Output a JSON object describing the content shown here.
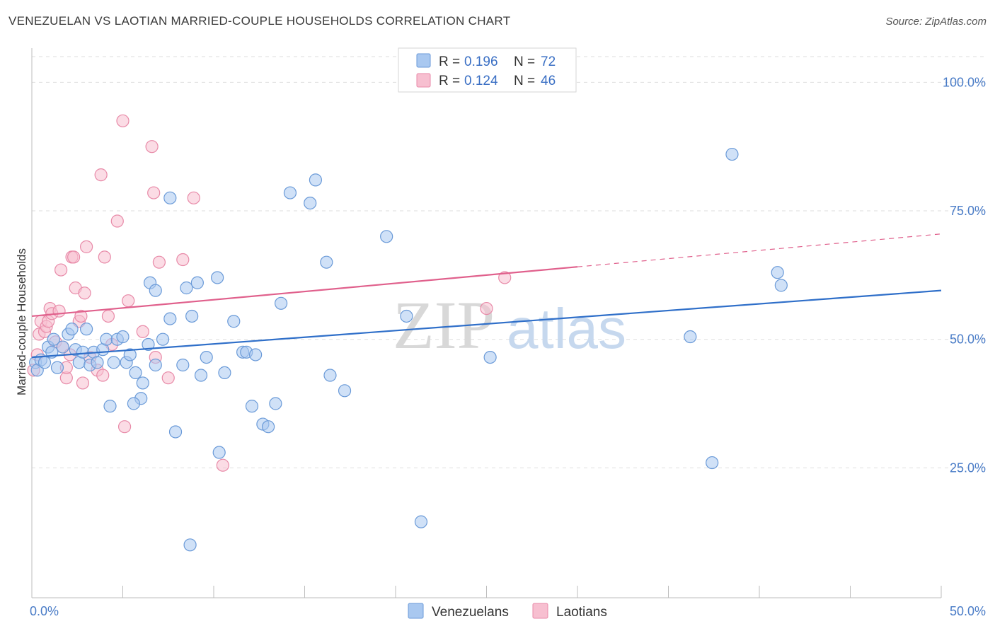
{
  "title": "VENEZUELAN VS LAOTIAN MARRIED-COUPLE HOUSEHOLDS CORRELATION CHART",
  "source": "Source: ZipAtlas.com",
  "watermark": {
    "zip": "ZIP",
    "atlas": "atlas"
  },
  "colors": {
    "venezuelans_fill": "#a9c8f0",
    "venezuelans_stroke": "#6a9ad8",
    "venezuelans_line": "#2f6fc9",
    "laotians_fill": "#f7bfd0",
    "laotians_stroke": "#e88aa8",
    "laotians_line": "#e0608c",
    "tick_text": "#4a7cc7"
  },
  "legend": {
    "r_label": "R =",
    "n_label": "N =",
    "venezuelans": {
      "r": "0.196",
      "n": "72"
    },
    "laotians": {
      "r": "0.124",
      "n": "46"
    }
  },
  "chart_data": {
    "type": "scatter",
    "title": "VENEZUELAN VS LAOTIAN MARRIED-COUPLE HOUSEHOLDS CORRELATION CHART",
    "xlabel": "",
    "ylabel": "Married-couple Households",
    "xlim": [
      0,
      50
    ],
    "ylim": [
      0,
      105
    ],
    "x_tick_labels": [
      "0.0%",
      "50.0%"
    ],
    "y_ticks": [
      25,
      50,
      75,
      100
    ],
    "y_tick_labels": [
      "25.0%",
      "50.0%",
      "75.0%",
      "100.0%"
    ],
    "grid": true,
    "legend_position": "top-center",
    "series": [
      {
        "name": "Venezuelans",
        "r": 0.196,
        "n": 72,
        "trend": {
          "x": [
            0,
            50
          ],
          "y": [
            46.5,
            59.5
          ],
          "dashed_from": null
        },
        "points": [
          [
            0.2,
            45.5
          ],
          [
            0.3,
            44
          ],
          [
            0.5,
            46
          ],
          [
            0.7,
            45.5
          ],
          [
            0.9,
            48.5
          ],
          [
            1.1,
            47.5
          ],
          [
            1.2,
            50
          ],
          [
            1.4,
            44.5
          ],
          [
            1.7,
            48.5
          ],
          [
            2.0,
            51
          ],
          [
            2.2,
            52
          ],
          [
            2.4,
            48
          ],
          [
            2.6,
            45.5
          ],
          [
            2.8,
            47.5
          ],
          [
            3.0,
            52
          ],
          [
            3.2,
            45
          ],
          [
            3.4,
            47.5
          ],
          [
            3.6,
            45.5
          ],
          [
            3.9,
            48
          ],
          [
            4.1,
            50
          ],
          [
            4.3,
            37
          ],
          [
            4.5,
            45.5
          ],
          [
            4.7,
            50
          ],
          [
            5.0,
            50.5
          ],
          [
            5.2,
            45.5
          ],
          [
            5.4,
            47
          ],
          [
            5.7,
            43.5
          ],
          [
            6.0,
            38.5
          ],
          [
            6.1,
            41.5
          ],
          [
            5.6,
            37.5
          ],
          [
            6.4,
            49
          ],
          [
            6.5,
            61
          ],
          [
            6.8,
            59.5
          ],
          [
            6.8,
            45
          ],
          [
            7.2,
            50
          ],
          [
            7.6,
            54
          ],
          [
            7.6,
            77.5
          ],
          [
            7.9,
            32
          ],
          [
            8.3,
            45
          ],
          [
            8.5,
            60
          ],
          [
            8.7,
            10
          ],
          [
            8.8,
            54.5
          ],
          [
            9.1,
            61
          ],
          [
            9.3,
            43
          ],
          [
            9.6,
            46.5
          ],
          [
            10.2,
            62
          ],
          [
            10.3,
            28
          ],
          [
            10.6,
            43.5
          ],
          [
            11.1,
            53.5
          ],
          [
            11.6,
            47.5
          ],
          [
            11.8,
            47.5
          ],
          [
            12.1,
            37
          ],
          [
            12.3,
            47
          ],
          [
            12.7,
            33.5
          ],
          [
            13.0,
            33
          ],
          [
            13.4,
            37.5
          ],
          [
            13.7,
            57
          ],
          [
            14.2,
            78.5
          ],
          [
            15.3,
            76.5
          ],
          [
            15.6,
            81
          ],
          [
            16.2,
            65
          ],
          [
            16.4,
            43
          ],
          [
            17.2,
            40
          ],
          [
            19.5,
            70
          ],
          [
            20.6,
            54.5
          ],
          [
            21.4,
            14.5
          ],
          [
            25.2,
            46.5
          ],
          [
            36.2,
            50.5
          ],
          [
            37.4,
            26
          ],
          [
            38.5,
            86
          ],
          [
            41.0,
            63
          ],
          [
            41.2,
            60.5
          ]
        ]
      },
      {
        "name": "Laotians",
        "r": 0.124,
        "n": 46,
        "trend": {
          "x": [
            0,
            50
          ],
          "y": [
            54.5,
            70.5
          ],
          "dashed_from": 30
        },
        "points": [
          [
            0.1,
            44
          ],
          [
            0.3,
            47
          ],
          [
            0.4,
            51
          ],
          [
            0.5,
            53.5
          ],
          [
            0.7,
            51.5
          ],
          [
            0.8,
            52.5
          ],
          [
            0.9,
            53.5
          ],
          [
            1.0,
            56
          ],
          [
            1.1,
            55
          ],
          [
            1.3,
            49.5
          ],
          [
            1.5,
            55.5
          ],
          [
            1.6,
            63.5
          ],
          [
            1.7,
            48.5
          ],
          [
            1.9,
            42.5
          ],
          [
            1.9,
            44.5
          ],
          [
            2.1,
            47
          ],
          [
            2.2,
            66
          ],
          [
            2.3,
            66
          ],
          [
            2.4,
            60
          ],
          [
            2.6,
            53.5
          ],
          [
            2.7,
            54.5
          ],
          [
            2.8,
            41.5
          ],
          [
            2.9,
            59
          ],
          [
            3.0,
            68
          ],
          [
            3.2,
            46.5
          ],
          [
            3.6,
            44
          ],
          [
            3.8,
            82
          ],
          [
            3.9,
            43
          ],
          [
            4.0,
            66
          ],
          [
            4.2,
            54.5
          ],
          [
            4.4,
            49
          ],
          [
            4.7,
            73
          ],
          [
            5.0,
            92.5
          ],
          [
            5.1,
            33
          ],
          [
            5.3,
            57.5
          ],
          [
            6.1,
            51.5
          ],
          [
            6.6,
            87.5
          ],
          [
            6.7,
            78.5
          ],
          [
            6.8,
            46.5
          ],
          [
            7.0,
            65
          ],
          [
            7.5,
            42.5
          ],
          [
            8.3,
            65.5
          ],
          [
            8.9,
            77.5
          ],
          [
            10.5,
            25.5
          ],
          [
            25.0,
            56
          ],
          [
            26.0,
            62
          ]
        ]
      }
    ]
  },
  "bottom_legend": [
    "Venezuelans",
    "Laotians"
  ]
}
